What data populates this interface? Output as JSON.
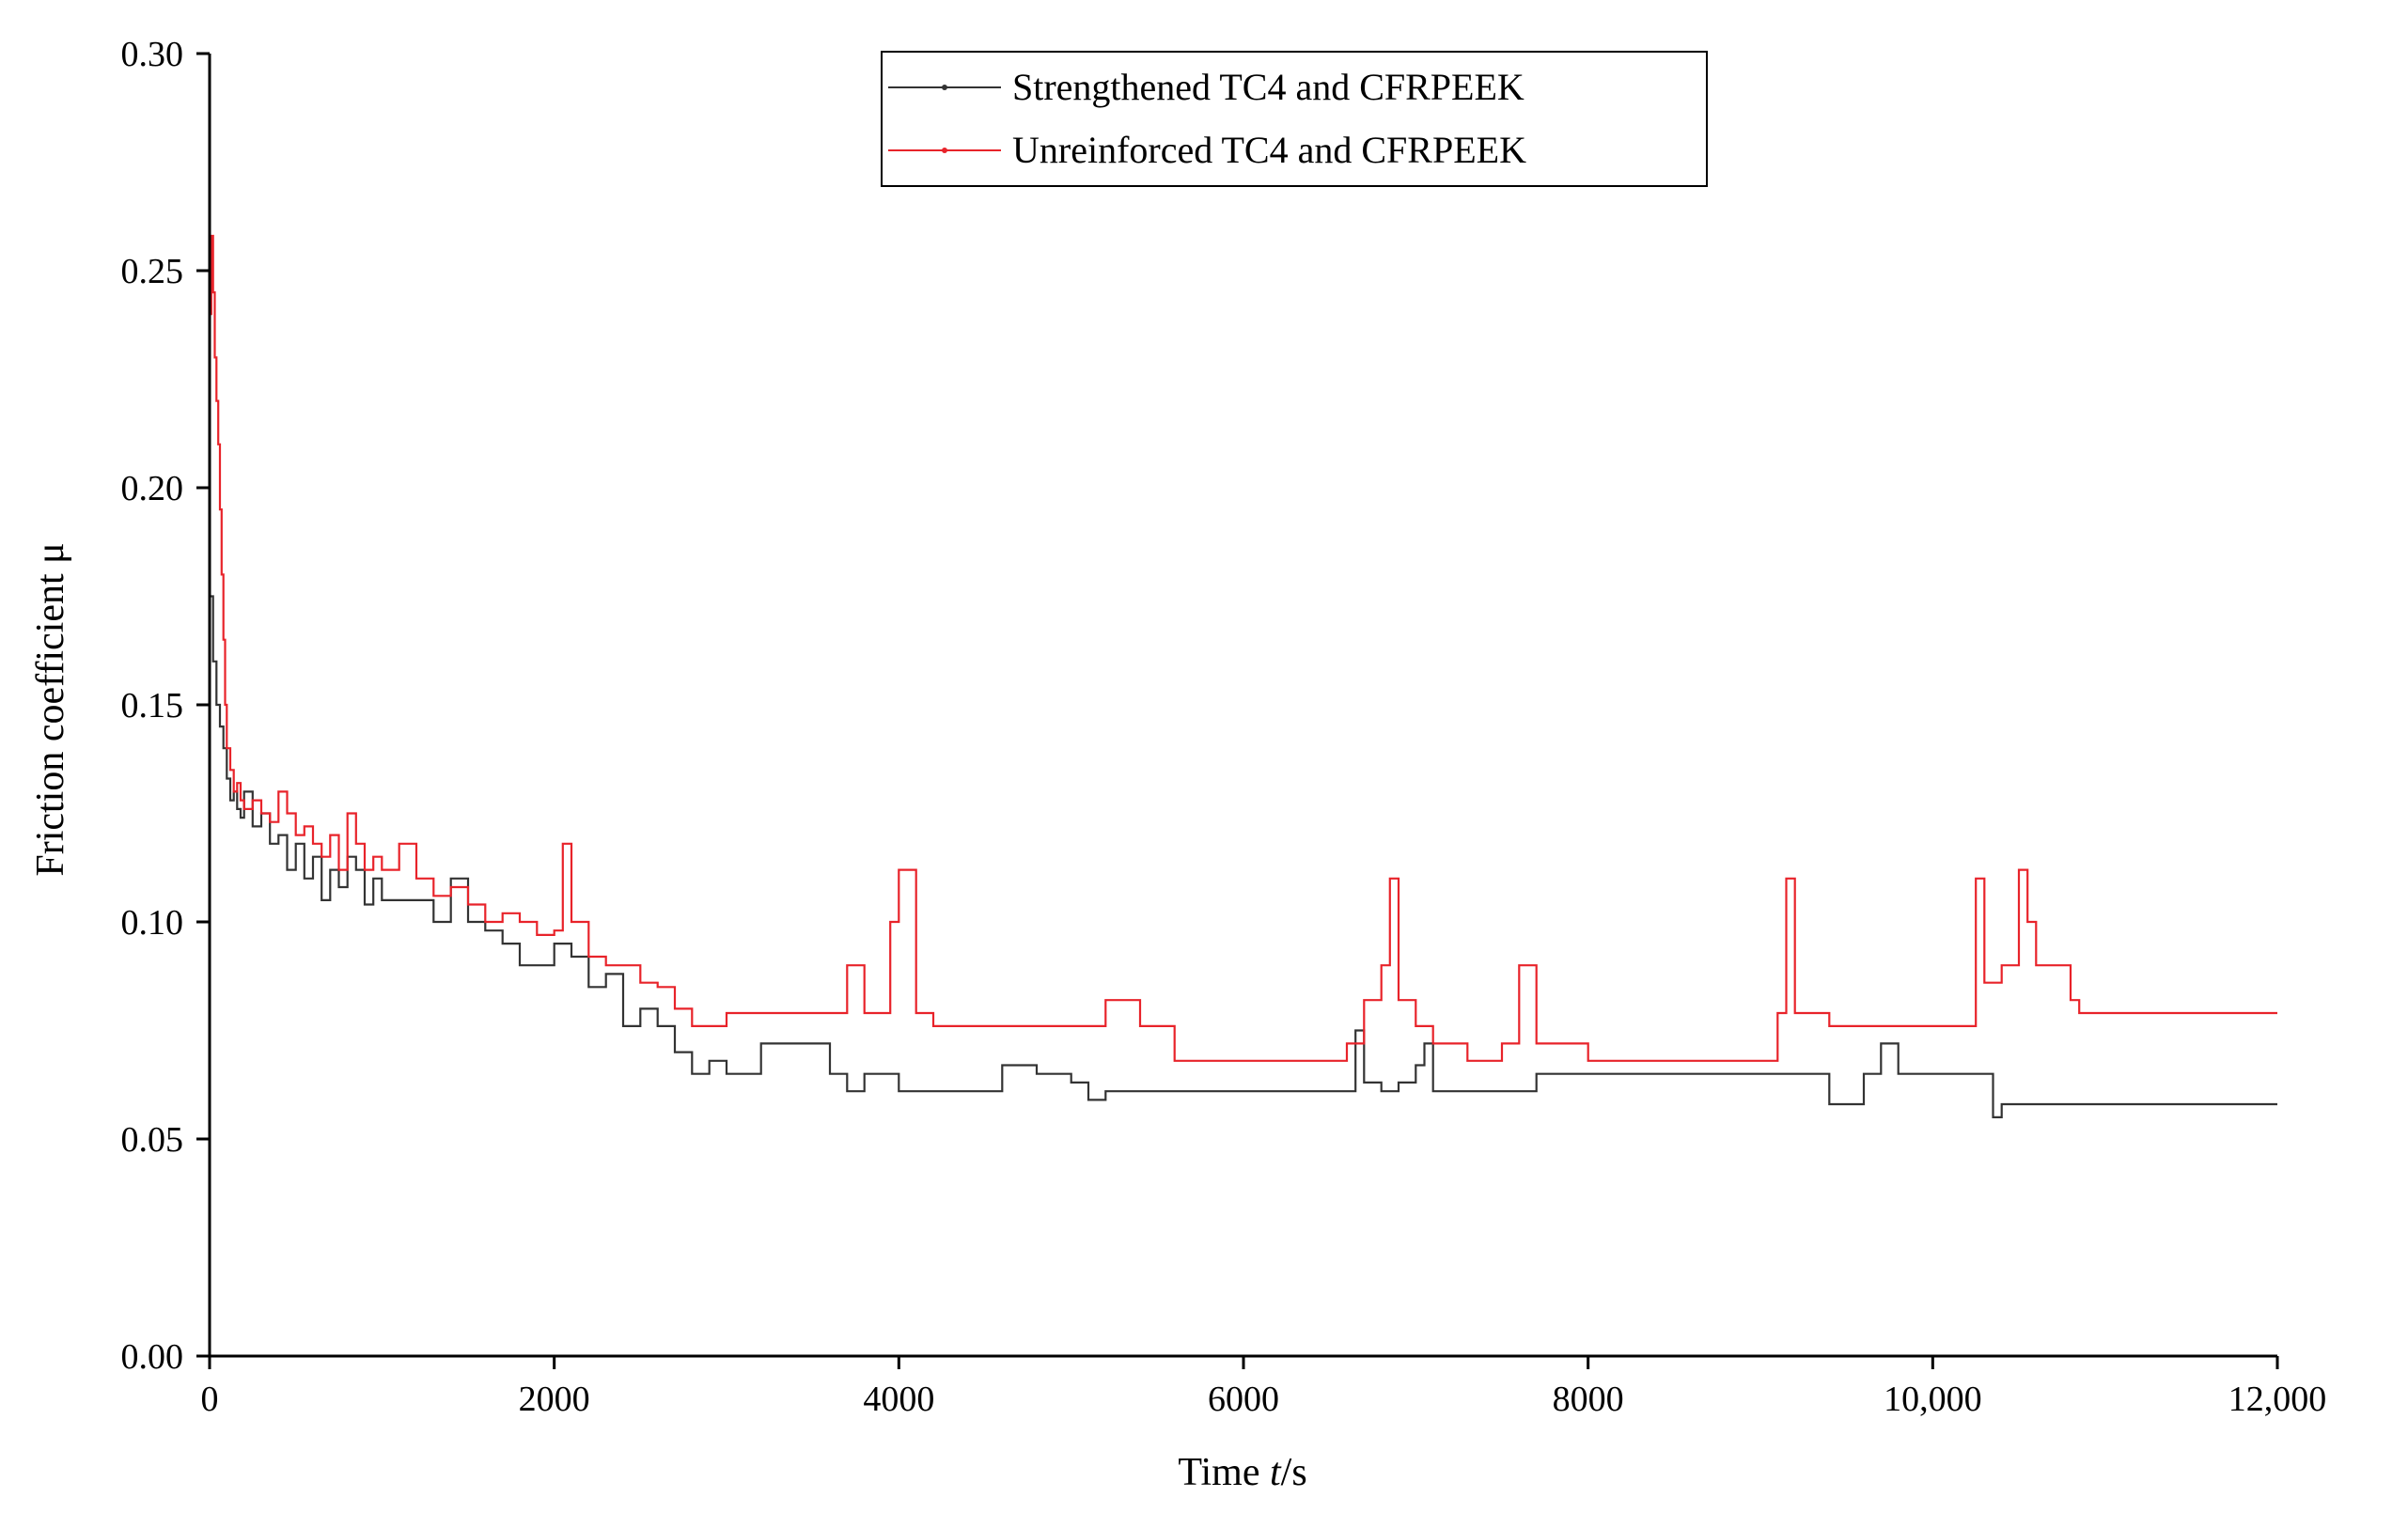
{
  "chart_data": {
    "type": "line",
    "title": "",
    "xlabel_prefix": "Time ",
    "xlabel_var": "t",
    "xlabel_suffix": "/s",
    "ylabel": "Friction coefficient μ",
    "xlim": [
      0,
      12000
    ],
    "ylim": [
      0,
      0.3
    ],
    "xticks": [
      0,
      2000,
      4000,
      6000,
      8000,
      10000,
      12000
    ],
    "xtick_labels": [
      "0",
      "2000",
      "4000",
      "6000",
      "8000",
      "10,000",
      "12,000"
    ],
    "yticks": [
      0,
      0.05,
      0.1,
      0.15,
      0.2,
      0.25,
      0.3
    ],
    "ytick_labels": [
      "0.00",
      "0.05",
      "0.10",
      "0.15",
      "0.20",
      "0.25",
      "0.30"
    ],
    "legend_position": "top-center",
    "series": [
      {
        "name": "Strengthened TC4 and CFRPEEK",
        "color": "#333333",
        "x": [
          0,
          20,
          40,
          60,
          80,
          100,
          120,
          140,
          160,
          180,
          200,
          250,
          300,
          350,
          400,
          450,
          500,
          550,
          600,
          650,
          700,
          750,
          800,
          850,
          900,
          950,
          1000,
          1100,
          1200,
          1300,
          1400,
          1500,
          1600,
          1700,
          1800,
          1900,
          2000,
          2100,
          2200,
          2300,
          2400,
          2500,
          2600,
          2700,
          2800,
          2900,
          3000,
          3200,
          3400,
          3600,
          3700,
          3800,
          4000,
          4200,
          4400,
          4600,
          4800,
          5000,
          5100,
          5200,
          5400,
          5600,
          5800,
          6000,
          6200,
          6400,
          6600,
          6650,
          6700,
          6800,
          6900,
          7000,
          7050,
          7100,
          7300,
          7500,
          7700,
          7900,
          8200,
          8600,
          9000,
          9300,
          9400,
          9600,
          9700,
          9800,
          10000,
          10200,
          10300,
          10350,
          10400,
          10600,
          10800,
          11000,
          11500,
          11700,
          12000
        ],
        "y": [
          0.175,
          0.16,
          0.15,
          0.145,
          0.14,
          0.133,
          0.128,
          0.13,
          0.126,
          0.124,
          0.13,
          0.122,
          0.125,
          0.118,
          0.12,
          0.112,
          0.118,
          0.11,
          0.115,
          0.105,
          0.112,
          0.108,
          0.115,
          0.112,
          0.104,
          0.11,
          0.105,
          0.105,
          0.105,
          0.1,
          0.11,
          0.1,
          0.098,
          0.095,
          0.09,
          0.09,
          0.095,
          0.092,
          0.085,
          0.088,
          0.076,
          0.08,
          0.076,
          0.07,
          0.065,
          0.068,
          0.065,
          0.072,
          0.072,
          0.065,
          0.061,
          0.065,
          0.061,
          0.061,
          0.061,
          0.067,
          0.065,
          0.063,
          0.059,
          0.061,
          0.061,
          0.061,
          0.061,
          0.061,
          0.061,
          0.061,
          0.061,
          0.075,
          0.063,
          0.061,
          0.063,
          0.067,
          0.072,
          0.061,
          0.061,
          0.061,
          0.065,
          0.065,
          0.065,
          0.065,
          0.065,
          0.065,
          0.058,
          0.065,
          0.072,
          0.065,
          0.065,
          0.065,
          0.065,
          0.055,
          0.058,
          0.058,
          0.058,
          0.058,
          0.058,
          0.058,
          0.058
        ]
      },
      {
        "name": "Unreinforced TC4 and CFRPEEK",
        "color": "#e8232a",
        "x": [
          0,
          10,
          20,
          30,
          40,
          50,
          60,
          70,
          80,
          90,
          100,
          120,
          140,
          160,
          180,
          200,
          250,
          300,
          350,
          400,
          450,
          500,
          550,
          600,
          650,
          700,
          750,
          800,
          850,
          900,
          950,
          1000,
          1100,
          1200,
          1300,
          1400,
          1500,
          1600,
          1700,
          1800,
          1900,
          2000,
          2050,
          2100,
          2200,
          2300,
          2400,
          2500,
          2600,
          2700,
          2800,
          2900,
          3000,
          3200,
          3400,
          3600,
          3700,
          3800,
          3950,
          4000,
          4100,
          4200,
          4400,
          4600,
          4800,
          5000,
          5200,
          5400,
          5600,
          5800,
          6000,
          6200,
          6400,
          6600,
          6700,
          6800,
          6850,
          6900,
          7000,
          7100,
          7300,
          7500,
          7600,
          7700,
          7900,
          8000,
          8200,
          8600,
          9000,
          9100,
          9150,
          9200,
          9400,
          9600,
          9800,
          10000,
          10200,
          10250,
          10300,
          10400,
          10500,
          10550,
          10600,
          10700,
          10800,
          10850,
          11000,
          11500,
          12000
        ],
        "y": [
          0.24,
          0.258,
          0.245,
          0.23,
          0.22,
          0.21,
          0.195,
          0.18,
          0.165,
          0.15,
          0.14,
          0.135,
          0.13,
          0.132,
          0.128,
          0.126,
          0.128,
          0.125,
          0.123,
          0.13,
          0.125,
          0.12,
          0.122,
          0.118,
          0.115,
          0.12,
          0.112,
          0.125,
          0.118,
          0.112,
          0.115,
          0.112,
          0.118,
          0.11,
          0.106,
          0.108,
          0.104,
          0.1,
          0.102,
          0.1,
          0.097,
          0.098,
          0.118,
          0.1,
          0.092,
          0.09,
          0.09,
          0.086,
          0.085,
          0.08,
          0.076,
          0.076,
          0.079,
          0.079,
          0.079,
          0.079,
          0.09,
          0.079,
          0.1,
          0.112,
          0.079,
          0.076,
          0.076,
          0.076,
          0.076,
          0.076,
          0.082,
          0.076,
          0.068,
          0.068,
          0.068,
          0.068,
          0.068,
          0.072,
          0.082,
          0.09,
          0.11,
          0.082,
          0.076,
          0.072,
          0.068,
          0.072,
          0.09,
          0.072,
          0.072,
          0.068,
          0.068,
          0.068,
          0.068,
          0.079,
          0.11,
          0.079,
          0.076,
          0.076,
          0.076,
          0.076,
          0.076,
          0.11,
          0.086,
          0.09,
          0.112,
          0.1,
          0.09,
          0.09,
          0.082,
          0.079,
          0.079,
          0.079,
          0.079
        ]
      }
    ]
  }
}
